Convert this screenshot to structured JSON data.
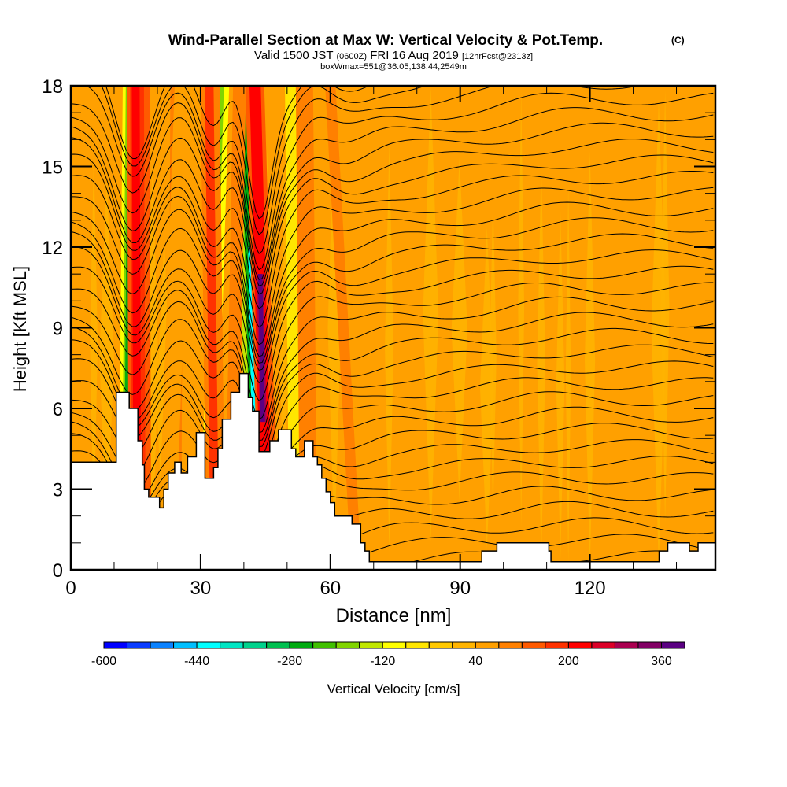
{
  "chart_data": {
    "type": "heatmap",
    "title": "Wind-Parallel Section at Max W: Vertical Velocity & Pot.Temp.",
    "title_mark": "(C)",
    "subtitle_parts": [
      "Valid 1500 JST",
      "(0600Z)",
      "FRI 16 Aug 2019",
      "[12hrFcst@2313z]"
    ],
    "subtitle2": "boxWmax=551@36.05,138.44,2549m",
    "xlabel": "Distance [nm]",
    "ylabel": "Height [Kft MSL]",
    "xlim": [
      0,
      149
    ],
    "ylim": [
      0,
      18
    ],
    "xticks": [
      0,
      30,
      60,
      90,
      120
    ],
    "xtick_labels": [
      "0",
      "30",
      "60",
      "90",
      "120"
    ],
    "yticks": [
      0,
      3,
      6,
      9,
      12,
      15,
      18
    ],
    "ytick_labels": [
      "0",
      "3",
      "6",
      "9",
      "12",
      "15",
      "18"
    ],
    "x_minor_step": 10,
    "y_minor_step": 1,
    "grid": false,
    "background_value_cm_s": 40,
    "features": [
      {
        "name": "updraft-1",
        "x_nm": 15,
        "value_cm_s": 200
      },
      {
        "name": "downdraft-1",
        "x_nm": 13,
        "value_cm_s": -280
      },
      {
        "name": "updraft-2",
        "x_nm": 33,
        "value_cm_s": 200
      },
      {
        "name": "downdraft-2",
        "x_nm": 31,
        "value_cm_s": -200
      },
      {
        "name": "downdraft-3",
        "x_nm": 43,
        "value_cm_s": -600
      },
      {
        "name": "updraft-3",
        "x_nm": 45,
        "value_cm_s": 360
      }
    ],
    "terrain_kft": [
      [
        0,
        4.0
      ],
      [
        10.5,
        4.0
      ],
      [
        10.5,
        6.6
      ],
      [
        13.5,
        6.6
      ],
      [
        13.5,
        6.0
      ],
      [
        15.5,
        6.0
      ],
      [
        15.5,
        4.8
      ],
      [
        16.5,
        4.8
      ],
      [
        16.5,
        3.9
      ],
      [
        17,
        3.9
      ],
      [
        17,
        3.0
      ],
      [
        18,
        3.0
      ],
      [
        18,
        2.7
      ],
      [
        20.5,
        2.7
      ],
      [
        20.5,
        2.3
      ],
      [
        21.5,
        2.3
      ],
      [
        21.5,
        3.0
      ],
      [
        22.5,
        3.0
      ],
      [
        22.5,
        3.6
      ],
      [
        24,
        3.6
      ],
      [
        24,
        4.0
      ],
      [
        25.5,
        4.0
      ],
      [
        25.5,
        3.6
      ],
      [
        27,
        3.6
      ],
      [
        27,
        4.2
      ],
      [
        29,
        4.2
      ],
      [
        29,
        5.1
      ],
      [
        31,
        5.1
      ],
      [
        31,
        3.4
      ],
      [
        33,
        3.4
      ],
      [
        33,
        3.8
      ],
      [
        34,
        3.8
      ],
      [
        34,
        4.5
      ],
      [
        35,
        4.5
      ],
      [
        35,
        5.6
      ],
      [
        37,
        5.6
      ],
      [
        37,
        6.6
      ],
      [
        39,
        6.6
      ],
      [
        39,
        7.3
      ],
      [
        41,
        7.3
      ],
      [
        41,
        6.4
      ],
      [
        42,
        6.4
      ],
      [
        42,
        5.9
      ],
      [
        43.5,
        5.9
      ],
      [
        43.5,
        4.4
      ],
      [
        46,
        4.4
      ],
      [
        46,
        4.8
      ],
      [
        48,
        4.8
      ],
      [
        48,
        5.2
      ],
      [
        51,
        5.2
      ],
      [
        51,
        4.5
      ],
      [
        52,
        4.5
      ],
      [
        52,
        4.2
      ],
      [
        54,
        4.2
      ],
      [
        54,
        4.8
      ],
      [
        56,
        4.8
      ],
      [
        56,
        4.2
      ],
      [
        57,
        4.2
      ],
      [
        57,
        3.9
      ],
      [
        58,
        3.9
      ],
      [
        58,
        3.4
      ],
      [
        59,
        3.4
      ],
      [
        59,
        2.9
      ],
      [
        60,
        2.9
      ],
      [
        60,
        2.5
      ],
      [
        61,
        2.5
      ],
      [
        61,
        2.0
      ],
      [
        65,
        2.0
      ],
      [
        65,
        1.7
      ],
      [
        67,
        1.7
      ],
      [
        67,
        1.0
      ],
      [
        68,
        1.0
      ],
      [
        68,
        0.7
      ],
      [
        69,
        0.7
      ],
      [
        69,
        0.3
      ],
      [
        95,
        0.3
      ],
      [
        95,
        0.7
      ],
      [
        98.5,
        0.7
      ],
      [
        98.5,
        1.0
      ],
      [
        110.5,
        1.0
      ],
      [
        110.5,
        0.7
      ],
      [
        111,
        0.7
      ],
      [
        111,
        0.3
      ],
      [
        136,
        0.3
      ],
      [
        136,
        0.7
      ],
      [
        138,
        0.7
      ],
      [
        138,
        1.0
      ],
      [
        143,
        1.0
      ],
      [
        143,
        0.7
      ],
      [
        145,
        0.7
      ],
      [
        145,
        1.0
      ],
      [
        149,
        1.0
      ]
    ],
    "colorbar": {
      "label": "Vertical Velocity [cm/s]",
      "min": -600,
      "max": 400,
      "step": 40,
      "tick_values": [
        -600,
        -440,
        -280,
        -120,
        40,
        200,
        360
      ],
      "tick_labels": [
        "-600",
        "-440",
        "-280",
        "-120",
        "40",
        "200",
        "360"
      ],
      "colors": [
        "#0000ff",
        "#0a3cff",
        "#0a82ff",
        "#00bfff",
        "#00ffff",
        "#00e6c3",
        "#00d28c",
        "#00c050",
        "#00ab10",
        "#40c000",
        "#80d400",
        "#c0e600",
        "#ffff00",
        "#ffe600",
        "#ffc800",
        "#ffb400",
        "#ffa000",
        "#ff8000",
        "#ff5a00",
        "#ff3200",
        "#ff0000",
        "#dc0028",
        "#aa0050",
        "#820064",
        "#5a0082"
      ]
    }
  }
}
